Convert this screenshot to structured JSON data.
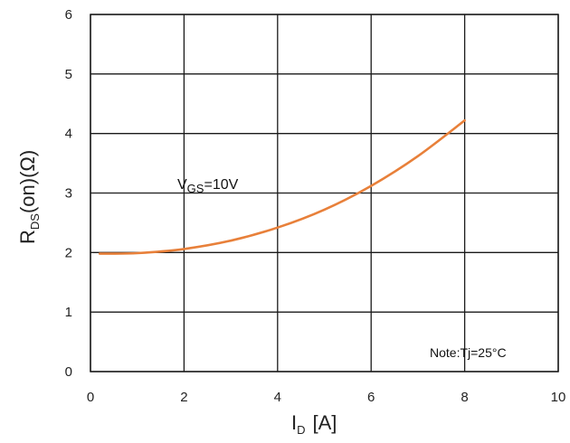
{
  "chart_data": {
    "type": "line",
    "title": "",
    "xlabel": {
      "main": "I",
      "sub": "D",
      "unit": "[A]"
    },
    "ylabel": {
      "main": "R",
      "sub": "DS",
      "rest": "(on)(Ω)"
    },
    "xlim": [
      0,
      10
    ],
    "ylim": [
      0,
      6
    ],
    "x_ticks": [
      0,
      2,
      4,
      6,
      8,
      10
    ],
    "y_ticks": [
      0,
      1,
      2,
      3,
      4,
      5,
      6
    ],
    "grid": true,
    "series": [
      {
        "color": "#E8803A",
        "x": [
          0.2,
          1.0,
          2.0,
          3.0,
          4.0,
          5.0,
          6.0,
          7.0,
          8.0
        ],
        "y": [
          1.98,
          1.99,
          2.06,
          2.2,
          2.42,
          2.72,
          3.12,
          3.62,
          4.22
        ]
      }
    ],
    "annotations": {
      "vgs": {
        "main": "V",
        "sub": "GS",
        "rest": "=10V"
      },
      "note": "Note:Tj=25°C"
    }
  }
}
